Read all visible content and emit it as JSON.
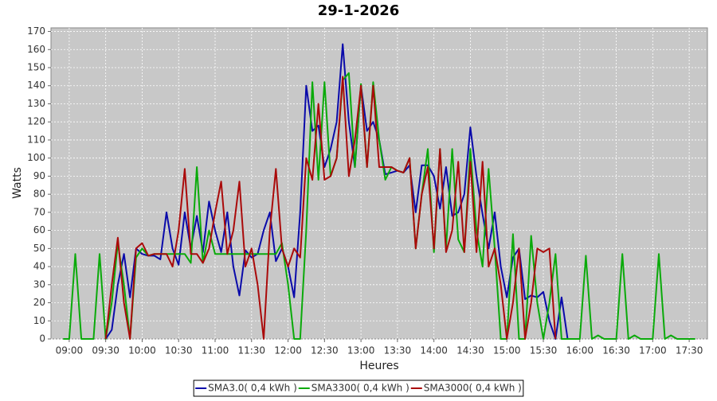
{
  "chart_data": {
    "type": "line",
    "title": "29-1-2026",
    "x_label": "Heures",
    "y_label": "Watts",
    "x": [
      "08:55",
      "09:00",
      "09:05",
      "09:10",
      "09:15",
      "09:20",
      "09:25",
      "09:30",
      "09:35",
      "09:40",
      "09:45",
      "09:50",
      "09:55",
      "10:00",
      "10:05",
      "10:10",
      "10:15",
      "10:20",
      "10:25",
      "10:30",
      "10:35",
      "10:40",
      "10:45",
      "10:50",
      "10:55",
      "11:00",
      "11:05",
      "11:10",
      "11:15",
      "11:20",
      "11:25",
      "11:30",
      "11:35",
      "11:40",
      "11:45",
      "11:50",
      "11:55",
      "12:00",
      "12:05",
      "12:10",
      "12:15",
      "12:20",
      "12:25",
      "12:30",
      "12:35",
      "12:40",
      "12:45",
      "12:50",
      "12:55",
      "13:00",
      "13:05",
      "13:10",
      "13:15",
      "13:20",
      "13:25",
      "13:30",
      "13:35",
      "13:40",
      "13:45",
      "13:50",
      "13:55",
      "14:00",
      "14:05",
      "14:10",
      "14:15",
      "14:20",
      "14:25",
      "14:30",
      "14:35",
      "14:40",
      "14:45",
      "14:50",
      "14:55",
      "15:00",
      "15:05",
      "15:10",
      "15:15",
      "15:20",
      "15:25",
      "15:30",
      "15:35",
      "15:40",
      "15:45",
      "15:50",
      "15:55",
      "16:00",
      "16:05",
      "16:10",
      "16:15",
      "16:20",
      "16:25",
      "16:30",
      "16:35",
      "16:40",
      "16:45",
      "16:50",
      "16:55",
      "17:00",
      "17:05",
      "17:10",
      "17:15",
      "17:20",
      "17:25",
      "17:30",
      "17:35"
    ],
    "series": [
      {
        "name": "SMA3.0( 0,4 kWh )",
        "color": "#0a0aaa",
        "values": [
          null,
          null,
          null,
          null,
          null,
          null,
          null,
          0,
          5,
          30,
          47,
          23,
          50,
          47,
          46,
          46,
          44,
          70,
          50,
          41,
          70,
          50,
          68,
          48,
          76,
          60,
          48,
          70,
          40,
          24,
          49,
          45,
          47,
          60,
          70,
          43,
          50,
          40,
          23,
          70,
          140,
          115,
          118,
          95,
          105,
          120,
          163,
          120,
          95,
          140,
          115,
          120,
          110,
          91,
          92,
          93,
          92,
          96,
          70,
          96,
          96,
          90,
          72,
          95,
          68,
          70,
          80,
          117,
          90,
          69,
          50,
          70,
          40,
          23,
          45,
          50,
          22,
          24,
          23,
          26,
          10,
          0,
          23,
          0,
          null,
          null,
          null,
          null,
          null,
          null,
          null,
          null,
          null,
          null,
          null,
          null,
          null,
          null,
          null,
          null,
          null,
          null,
          null,
          null,
          null
        ]
      },
      {
        "name": "SMA3300( 0,4 kWh )",
        "color": "#0aaa0a",
        "values": [
          0,
          0,
          47,
          0,
          0,
          0,
          47,
          0,
          20,
          53,
          30,
          0,
          45,
          50,
          46,
          47,
          47,
          47,
          47,
          47,
          47,
          42,
          95,
          42,
          60,
          47,
          47,
          47,
          47,
          47,
          47,
          47,
          47,
          47,
          47,
          47,
          53,
          30,
          0,
          0,
          60,
          142,
          88,
          142,
          90,
          100,
          143,
          147,
          95,
          141,
          95,
          142,
          110,
          88,
          95,
          93,
          92,
          100,
          50,
          80,
          105,
          48,
          105,
          50,
          105,
          55,
          48,
          105,
          60,
          40,
          94,
          50,
          0,
          0,
          58,
          0,
          0,
          57,
          20,
          0,
          20,
          47,
          0,
          0,
          0,
          0,
          46,
          0,
          2,
          0,
          0,
          0,
          47,
          0,
          2,
          0,
          0,
          0,
          47,
          0,
          2,
          0,
          0,
          0,
          0
        ]
      },
      {
        "name": "SMA3000( 0,4 kWh )",
        "color": "#aa0a0a",
        "values": [
          null,
          null,
          null,
          null,
          null,
          null,
          null,
          0,
          30,
          56,
          20,
          0,
          50,
          53,
          46,
          47,
          47,
          47,
          40,
          60,
          94,
          47,
          47,
          42,
          50,
          70,
          87,
          47,
          60,
          87,
          40,
          50,
          30,
          0,
          60,
          94,
          50,
          40,
          50,
          45,
          100,
          88,
          130,
          88,
          90,
          100,
          145,
          90,
          110,
          140,
          95,
          140,
          95,
          95,
          95,
          93,
          92,
          100,
          50,
          80,
          95,
          50,
          105,
          48,
          60,
          98,
          48,
          98,
          48,
          98,
          40,
          50,
          30,
          0,
          20,
          50,
          0,
          20,
          50,
          48,
          50,
          0,
          null,
          null,
          null,
          null,
          null,
          null,
          null,
          null,
          null,
          null,
          null,
          null,
          null,
          null,
          null,
          null,
          null,
          null,
          null,
          null,
          null,
          null,
          null
        ]
      }
    ],
    "xlim": [
      "08:45",
      "17:45"
    ],
    "xticks": [
      "09:00",
      "09:30",
      "10:00",
      "10:30",
      "11:00",
      "11:30",
      "12:00",
      "12:30",
      "13:00",
      "13:30",
      "14:00",
      "14:30",
      "15:00",
      "15:30",
      "16:00",
      "16:30",
      "17:00",
      "17:30"
    ],
    "ylim": [
      0,
      172
    ],
    "yticks": [
      0,
      10,
      20,
      30,
      40,
      50,
      60,
      70,
      80,
      90,
      100,
      110,
      120,
      130,
      140,
      150,
      160,
      170
    ],
    "grid": true,
    "legend": "bottom"
  }
}
